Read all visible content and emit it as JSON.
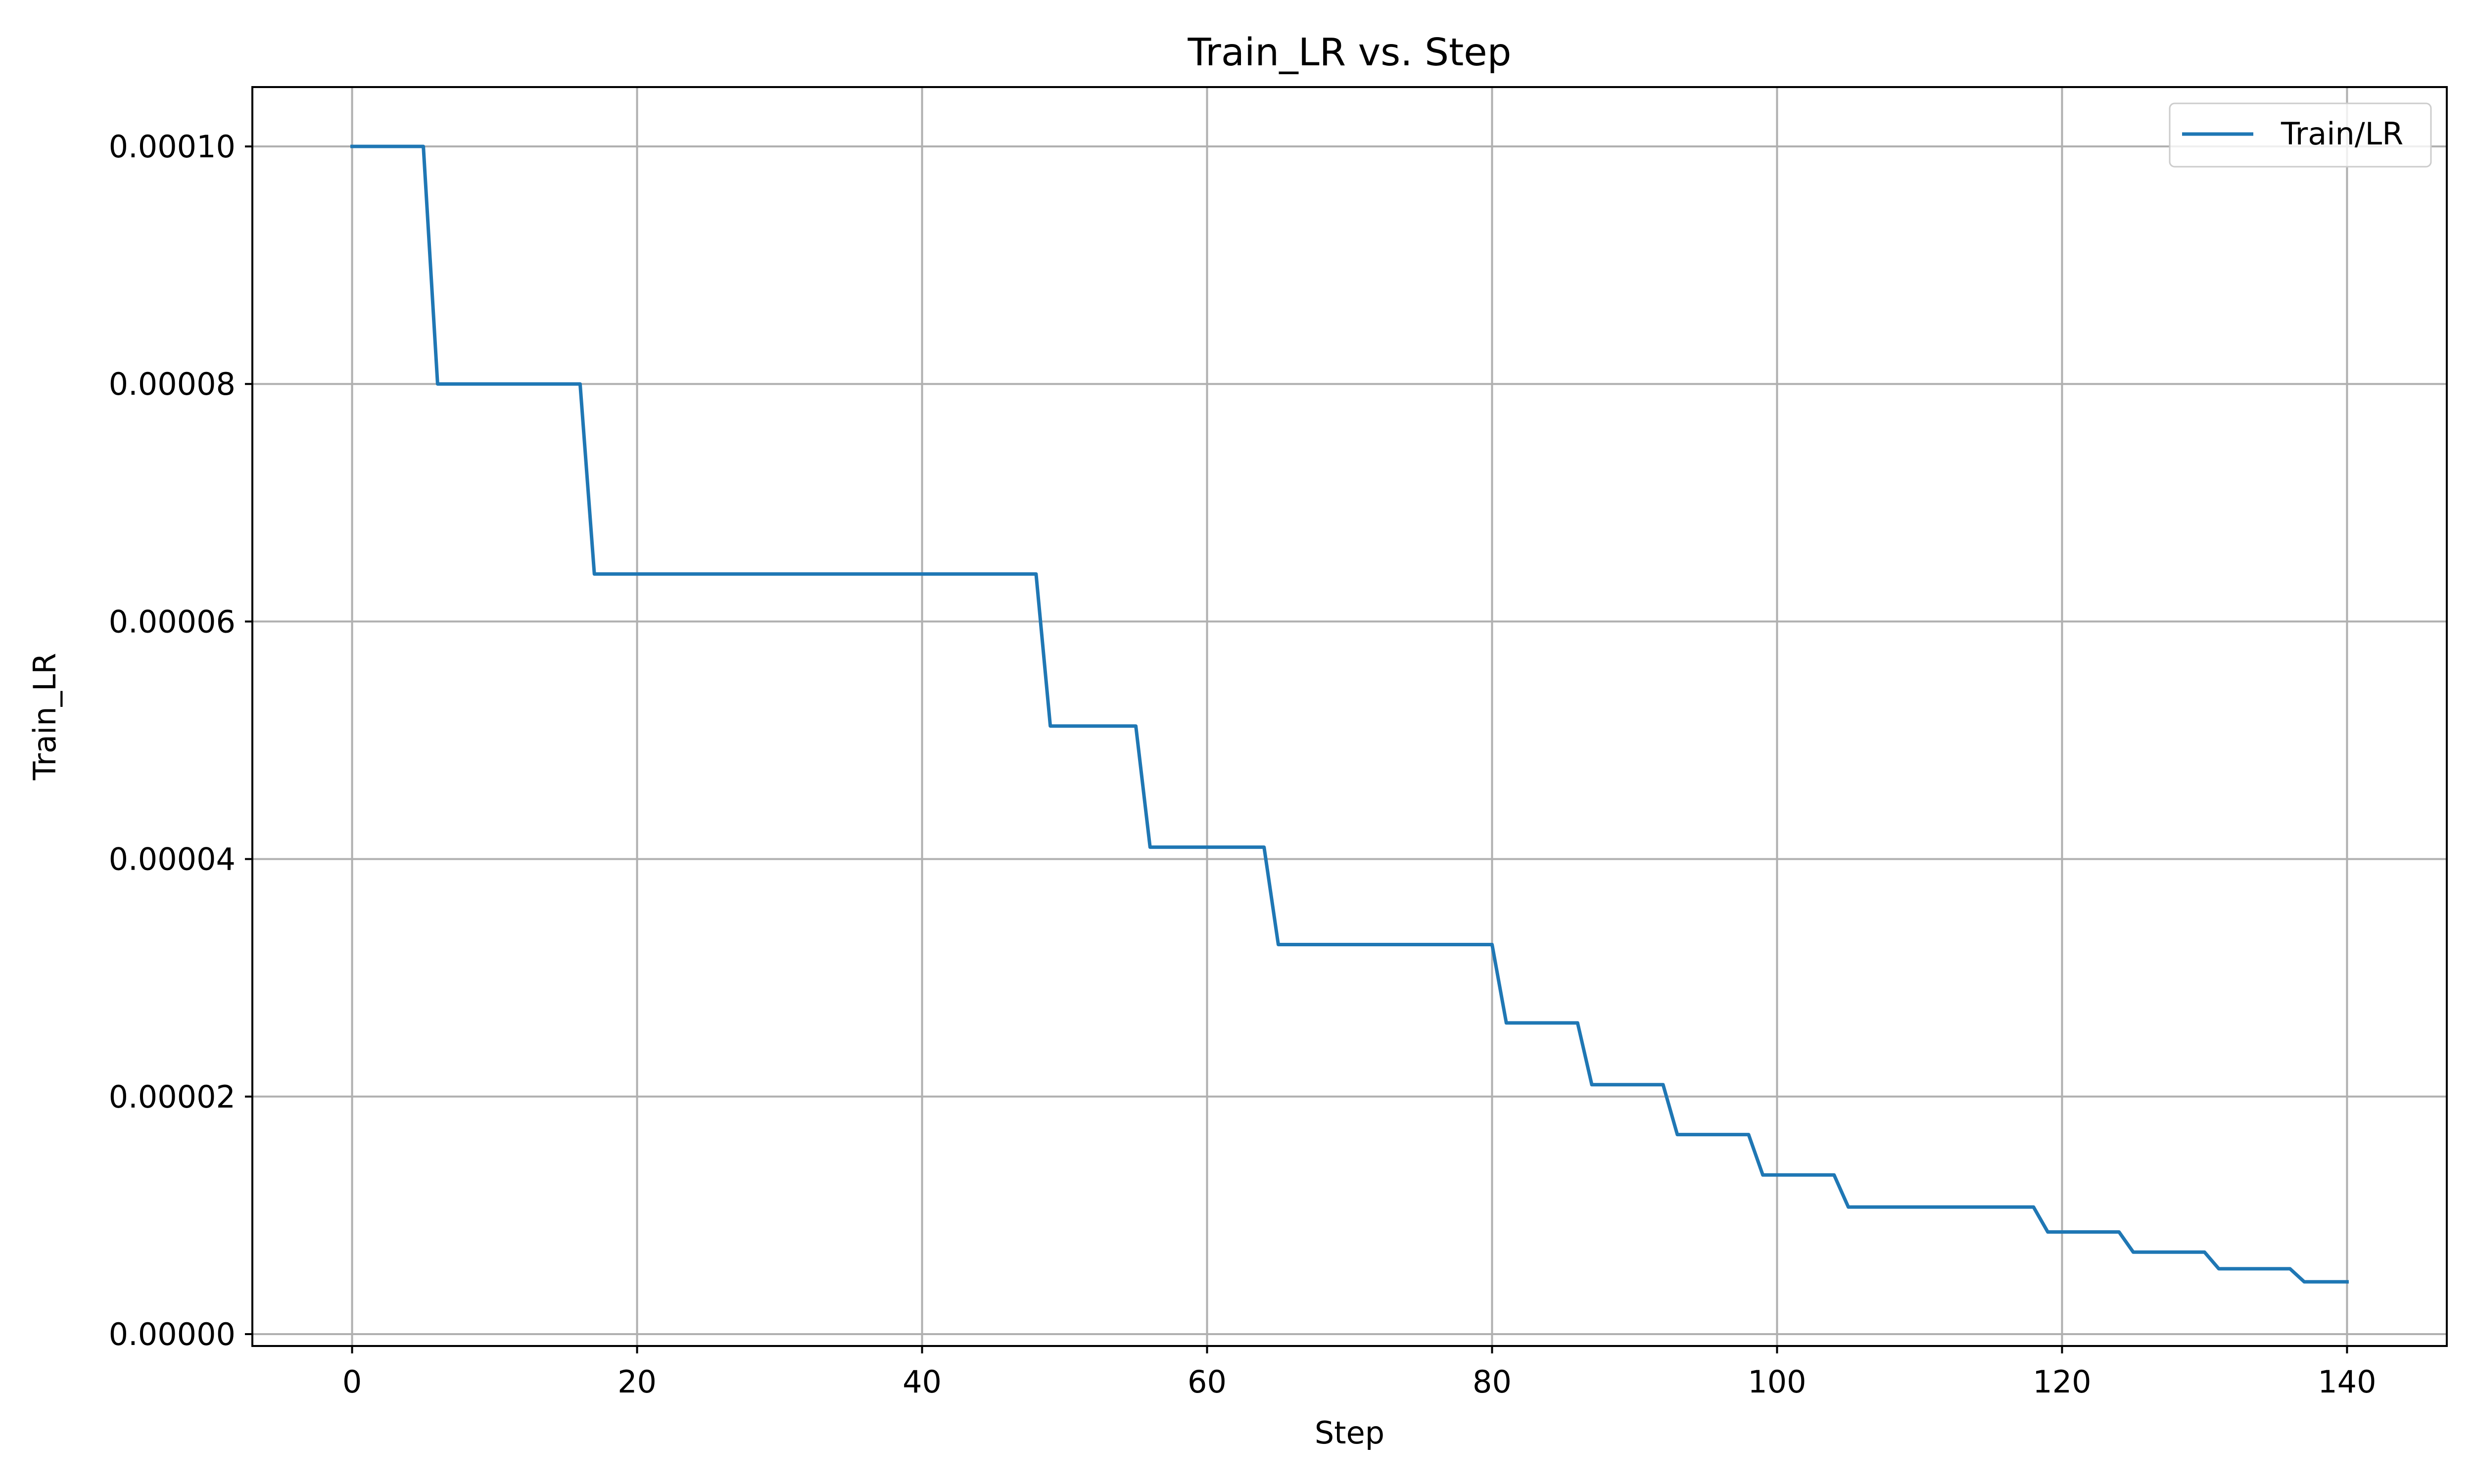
{
  "chart_data": {
    "type": "line",
    "title": "Train_LR vs. Step",
    "xlabel": "Step",
    "ylabel": "Train_LR",
    "xlim": [
      -7,
      147
    ],
    "ylim": [
      -1e-06,
      0.000105
    ],
    "x_ticks": [
      0,
      20,
      40,
      60,
      80,
      100,
      120,
      140
    ],
    "x_tick_labels": [
      "0",
      "20",
      "40",
      "60",
      "80",
      "100",
      "120",
      "140"
    ],
    "y_ticks": [
      0,
      2e-05,
      4e-05,
      6e-05,
      8e-05,
      0.0001
    ],
    "y_tick_labels": [
      "0.00000",
      "0.00002",
      "0.00004",
      "0.00006",
      "0.00008",
      "0.00010"
    ],
    "grid": true,
    "legend_position": "top-right",
    "series": [
      {
        "name": "Train/LR",
        "color": "#1f77b4",
        "x": [
          0,
          5,
          6,
          16,
          17,
          48,
          49,
          55,
          56,
          64,
          65,
          80,
          81,
          86,
          87,
          92,
          93,
          98,
          99,
          104,
          105,
          118,
          119,
          124,
          125,
          130,
          131,
          136,
          137,
          140
        ],
        "y": [
          0.0001,
          0.0001,
          8e-05,
          8e-05,
          6.4e-05,
          6.4e-05,
          5.12e-05,
          5.12e-05,
          4.1e-05,
          4.1e-05,
          3.28e-05,
          3.28e-05,
          2.62e-05,
          2.62e-05,
          2.1e-05,
          2.1e-05,
          1.68e-05,
          1.68e-05,
          1.34e-05,
          1.34e-05,
          1.07e-05,
          1.07e-05,
          8.6e-06,
          8.6e-06,
          6.9e-06,
          6.9e-06,
          5.5e-06,
          5.5e-06,
          4.4e-06,
          4.4e-06
        ]
      }
    ]
  }
}
